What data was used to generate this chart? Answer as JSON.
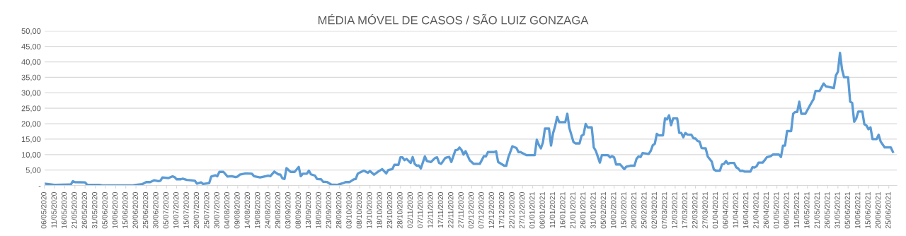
{
  "chart_data": {
    "type": "line",
    "title": "MÉDIA MÓVEL DE CASOS / SÃO LUIZ GONZAGA",
    "x": [
      "2020-05-06",
      "2020-05-11",
      "2020-05-18",
      "2020-05-19",
      "2020-05-20",
      "2020-05-21",
      "2020-05-26",
      "2020-05-27",
      "2020-06-02",
      "2020-06-04",
      "2020-06-18",
      "2020-06-20",
      "2020-06-23",
      "2020-06-25",
      "2020-06-27",
      "2020-06-29",
      "2020-07-01",
      "2020-07-02",
      "2020-07-03",
      "2020-07-06",
      "2020-07-08",
      "2020-07-09",
      "2020-07-10",
      "2020-07-12",
      "2020-07-13",
      "2020-07-15",
      "2020-07-17",
      "2020-07-19",
      "2020-07-20",
      "2020-07-22",
      "2020-07-23",
      "2020-07-26",
      "2020-07-27",
      "2020-07-29",
      "2020-07-30",
      "2020-07-31",
      "2020-08-02",
      "2020-08-04",
      "2020-08-06",
      "2020-08-08",
      "2020-08-09",
      "2020-08-10",
      "2020-08-13",
      "2020-08-16",
      "2020-08-17",
      "2020-08-20",
      "2020-08-22",
      "2020-08-24",
      "2020-08-25",
      "2020-08-27",
      "2020-08-29",
      "2020-08-30",
      "2020-08-31",
      "2020-09-01",
      "2020-09-02",
      "2020-09-04",
      "2020-09-06",
      "2020-09-08",
      "2020-09-09",
      "2020-09-10",
      "2020-09-12",
      "2020-09-13",
      "2020-09-14",
      "2020-09-16",
      "2020-09-17",
      "2020-09-19",
      "2020-09-20",
      "2020-09-22",
      "2020-09-24",
      "2020-09-27",
      "2020-09-29",
      "2020-09-30",
      "2020-10-01",
      "2020-10-03",
      "2020-10-05",
      "2020-10-06",
      "2020-10-07",
      "2020-10-08",
      "2020-10-10",
      "2020-10-12",
      "2020-10-13",
      "2020-10-15",
      "2020-10-17",
      "2020-10-19",
      "2020-10-21",
      "2020-10-22",
      "2020-10-24",
      "2020-10-25",
      "2020-10-27",
      "2020-10-28",
      "2020-10-29",
      "2020-10-30",
      "2020-10-31",
      "2020-11-02",
      "2020-11-03",
      "2020-11-04",
      "2020-11-05",
      "2020-11-06",
      "2020-11-07",
      "2020-11-09",
      "2020-11-10",
      "2020-11-12",
      "2020-11-14",
      "2020-11-15",
      "2020-11-16",
      "2020-11-17",
      "2020-11-19",
      "2020-11-20",
      "2020-11-21",
      "2020-11-22",
      "2020-11-24",
      "2020-11-25",
      "2020-11-26",
      "2020-11-27",
      "2020-11-28",
      "2020-11-29",
      "2020-12-01",
      "2020-12-03",
      "2020-12-06",
      "2020-12-08",
      "2020-12-09",
      "2020-12-10",
      "2020-12-13",
      "2020-12-14",
      "2020-12-15",
      "2020-12-18",
      "2020-12-19",
      "2020-12-20",
      "2020-12-22",
      "2020-12-24",
      "2020-12-25",
      "2020-12-26",
      "2020-12-29",
      "2021-01-02",
      "2021-01-03",
      "2021-01-04",
      "2021-01-05",
      "2021-01-06",
      "2021-01-07",
      "2021-01-09",
      "2021-01-10",
      "2021-01-11",
      "2021-01-12",
      "2021-01-13",
      "2021-01-14",
      "2021-01-17",
      "2021-01-18",
      "2021-01-19",
      "2021-01-21",
      "2021-01-22",
      "2021-01-24",
      "2021-01-25",
      "2021-01-26",
      "2021-01-27",
      "2021-01-28",
      "2021-01-30",
      "2021-01-31",
      "2021-02-01",
      "2021-02-03",
      "2021-02-04",
      "2021-02-07",
      "2021-02-08",
      "2021-02-09",
      "2021-02-10",
      "2021-02-11",
      "2021-02-13",
      "2021-02-15",
      "2021-02-16",
      "2021-02-18",
      "2021-02-20",
      "2021-02-21",
      "2021-02-22",
      "2021-02-23",
      "2021-02-24",
      "2021-02-27",
      "2021-02-28",
      "2021-03-01",
      "2021-03-02",
      "2021-03-03",
      "2021-03-04",
      "2021-03-06",
      "2021-03-07",
      "2021-03-08",
      "2021-03-09",
      "2021-03-10",
      "2021-03-11",
      "2021-03-13",
      "2021-03-14",
      "2021-03-15",
      "2021-03-16",
      "2021-03-17",
      "2021-03-18",
      "2021-03-20",
      "2021-03-21",
      "2021-03-22",
      "2021-03-23",
      "2021-03-24",
      "2021-03-25",
      "2021-03-27",
      "2021-03-28",
      "2021-03-30",
      "2021-03-31",
      "2021-04-01",
      "2021-04-03",
      "2021-04-04",
      "2021-04-05",
      "2021-04-06",
      "2021-04-07",
      "2021-04-08",
      "2021-04-10",
      "2021-04-11",
      "2021-04-12",
      "2021-04-13",
      "2021-04-14",
      "2021-04-15",
      "2021-04-18",
      "2021-04-19",
      "2021-04-20",
      "2021-04-21",
      "2021-04-22",
      "2021-04-24",
      "2021-04-25",
      "2021-04-26",
      "2021-04-28",
      "2021-04-29",
      "2021-05-02",
      "2021-05-03",
      "2021-05-04",
      "2021-05-05",
      "2021-05-06",
      "2021-05-08",
      "2021-05-09",
      "2021-05-10",
      "2021-05-11",
      "2021-05-12",
      "2021-05-13",
      "2021-05-15",
      "2021-05-16",
      "2021-05-18",
      "2021-05-19",
      "2021-05-20",
      "2021-05-22",
      "2021-05-24",
      "2021-05-25",
      "2021-05-27",
      "2021-05-29",
      "2021-05-30",
      "2021-05-31",
      "2021-06-01",
      "2021-06-02",
      "2021-06-03",
      "2021-06-05",
      "2021-06-06",
      "2021-06-07",
      "2021-06-08",
      "2021-06-09",
      "2021-06-10",
      "2021-06-12",
      "2021-06-13",
      "2021-06-14",
      "2021-06-15",
      "2021-06-16",
      "2021-06-17",
      "2021-06-19",
      "2021-06-20",
      "2021-06-21",
      "2021-06-23",
      "2021-06-26",
      "2021-06-27"
    ],
    "series": [
      {
        "color": "#5b9bd5",
        "values": [
          0.6,
          0.2,
          0.3,
          0.3,
          1.4,
          1.1,
          1.0,
          0.2,
          0.2,
          0,
          0,
          0.2,
          0.4,
          1.1,
          1.1,
          1.7,
          1.4,
          1.5,
          2.6,
          2.4,
          3.0,
          2.7,
          2.0,
          2.0,
          2.2,
          1.8,
          1.7,
          1.5,
          0.6,
          1.0,
          0.5,
          0.8,
          2.9,
          3.3,
          3.0,
          4.4,
          4.4,
          2.9,
          3.0,
          2.7,
          2.9,
          3.5,
          3.9,
          3.8,
          3.0,
          2.6,
          2.9,
          3.2,
          3.0,
          4.5,
          3.6,
          3.5,
          2.3,
          2.1,
          5.6,
          4.4,
          4.4,
          6.0,
          3.0,
          3.8,
          3.8,
          4.8,
          3.6,
          3.2,
          2.1,
          2.0,
          1.2,
          1.1,
          0.3,
          0.2,
          0.6,
          0.8,
          1.1,
          1.1,
          2.0,
          2.1,
          3.8,
          4.2,
          4.8,
          4.1,
          4.7,
          3.5,
          4.5,
          5.3,
          3.9,
          5.0,
          5.3,
          6.7,
          6.7,
          9.1,
          9.1,
          8.2,
          8.6,
          7.3,
          9.2,
          7.0,
          6.4,
          6.5,
          5.5,
          9.4,
          7.9,
          7.6,
          8.9,
          9.1,
          7.3,
          7.0,
          8.9,
          9.1,
          9.2,
          7.6,
          11.4,
          11.5,
          12.3,
          11.5,
          10.0,
          11.1,
          8.2,
          7.0,
          7.0,
          9.5,
          9.4,
          10.8,
          10.8,
          11.1,
          7.6,
          6.4,
          6.4,
          9.1,
          12.7,
          12.1,
          10.8,
          10.8,
          9.8,
          9.8,
          14.8,
          13.1,
          12.0,
          13.9,
          18.4,
          18.4,
          12.9,
          16.9,
          19.2,
          22.2,
          20.5,
          20.5,
          23.2,
          18.6,
          14.1,
          13.6,
          13.6,
          16.1,
          16.5,
          19.9,
          18.8,
          18.8,
          12.3,
          11.2,
          7.4,
          9.8,
          9.8,
          9.1,
          9.5,
          9.1,
          6.8,
          6.8,
          5.3,
          6.1,
          6.4,
          6.4,
          8.6,
          9.4,
          9.2,
          10.5,
          10.2,
          11.2,
          13.0,
          13.5,
          16.7,
          16.2,
          16.2,
          21.7,
          21.4,
          22.7,
          19.5,
          21.7,
          21.7,
          17.0,
          17.0,
          15.6,
          17.0,
          16.5,
          16.4,
          15.3,
          15.2,
          14.4,
          14.2,
          12.1,
          12.0,
          9.4,
          7.7,
          5.2,
          4.8,
          4.8,
          6.8,
          7.0,
          7.9,
          7.0,
          7.3,
          7.3,
          5.9,
          5.5,
          4.7,
          4.8,
          4.5,
          4.5,
          5.9,
          5.8,
          6.2,
          7.4,
          7.4,
          8.2,
          9.1,
          9.5,
          10.0,
          10.0,
          9.2,
          12.9,
          12.9,
          17.6,
          17.6,
          23.2,
          23.8,
          23.8,
          27.1,
          23.2,
          23.2,
          24.4,
          26.8,
          27.9,
          30.6,
          30.6,
          33.0,
          32.1,
          31.8,
          31.5,
          35.6,
          36.8,
          42.9,
          37.6,
          35.0,
          35.0,
          27.1,
          26.7,
          20.6,
          21.7,
          23.9,
          23.9,
          19.8,
          19.4,
          18.2,
          18.8,
          15.0,
          15.0,
          16.4,
          14.2,
          12.3,
          12.3,
          10.9
        ]
      }
    ],
    "xlim": [
      "2020-05-06",
      "2021-06-29"
    ],
    "xticks": [
      {
        "value": "2020-05-06",
        "label": "06/05/2020"
      },
      {
        "value": "2020-05-11",
        "label": "11/05/2020"
      },
      {
        "value": "2020-05-16",
        "label": "16/05/2020"
      },
      {
        "value": "2020-05-21",
        "label": "21/05/2020"
      },
      {
        "value": "2020-05-26",
        "label": "26/05/2020"
      },
      {
        "value": "2020-05-31",
        "label": "31/05/2020"
      },
      {
        "value": "2020-06-05",
        "label": "05/06/2020"
      },
      {
        "value": "2020-06-10",
        "label": "10/06/2020"
      },
      {
        "value": "2020-06-15",
        "label": "15/06/2020"
      },
      {
        "value": "2020-06-20",
        "label": "20/06/2020"
      },
      {
        "value": "2020-06-25",
        "label": "25/06/2020"
      },
      {
        "value": "2020-06-30",
        "label": "30/06/2020"
      },
      {
        "value": "2020-07-05",
        "label": "05/07/2020"
      },
      {
        "value": "2020-07-10",
        "label": "10/07/2020"
      },
      {
        "value": "2020-07-15",
        "label": "15/07/2020"
      },
      {
        "value": "2020-07-20",
        "label": "20/07/2020"
      },
      {
        "value": "2020-07-25",
        "label": "25/07/2020"
      },
      {
        "value": "2020-07-30",
        "label": "30/07/2020"
      },
      {
        "value": "2020-08-04",
        "label": "04/08/2020"
      },
      {
        "value": "2020-08-09",
        "label": "09/08/2020"
      },
      {
        "value": "2020-08-14",
        "label": "14/08/2020"
      },
      {
        "value": "2020-08-19",
        "label": "19/08/2020"
      },
      {
        "value": "2020-08-24",
        "label": "24/08/2020"
      },
      {
        "value": "2020-08-29",
        "label": "29/08/2020"
      },
      {
        "value": "2020-09-03",
        "label": "03/09/2020"
      },
      {
        "value": "2020-09-08",
        "label": "08/09/2020"
      },
      {
        "value": "2020-09-13",
        "label": "13/09/2020"
      },
      {
        "value": "2020-09-18",
        "label": "18/09/2020"
      },
      {
        "value": "2020-09-23",
        "label": "23/09/2020"
      },
      {
        "value": "2020-09-28",
        "label": "28/09/2020"
      },
      {
        "value": "2020-10-03",
        "label": "03/10/2020"
      },
      {
        "value": "2020-10-08",
        "label": "08/10/2020"
      },
      {
        "value": "2020-10-13",
        "label": "13/10/2020"
      },
      {
        "value": "2020-10-18",
        "label": "18/10/2020"
      },
      {
        "value": "2020-10-23",
        "label": "23/10/2020"
      },
      {
        "value": "2020-10-28",
        "label": "28/10/2020"
      },
      {
        "value": "2020-11-02",
        "label": "02/11/2020"
      },
      {
        "value": "2020-11-07",
        "label": "07/11/2020"
      },
      {
        "value": "2020-11-12",
        "label": "12/11/2020"
      },
      {
        "value": "2020-11-17",
        "label": "17/11/2020"
      },
      {
        "value": "2020-11-22",
        "label": "22/11/2020"
      },
      {
        "value": "2020-11-27",
        "label": "27/11/2020"
      },
      {
        "value": "2020-12-02",
        "label": "02/12/2020"
      },
      {
        "value": "2020-12-07",
        "label": "07/12/2020"
      },
      {
        "value": "2020-12-12",
        "label": "12/12/2020"
      },
      {
        "value": "2020-12-17",
        "label": "17/12/2020"
      },
      {
        "value": "2020-12-22",
        "label": "22/12/2020"
      },
      {
        "value": "2020-12-27",
        "label": "27/12/2020"
      },
      {
        "value": "2021-01-01",
        "label": "01/01/2021"
      },
      {
        "value": "2021-01-06",
        "label": "06/01/2021"
      },
      {
        "value": "2021-01-11",
        "label": "11/01/2021"
      },
      {
        "value": "2021-01-16",
        "label": "16/01/2021"
      },
      {
        "value": "2021-01-21",
        "label": "21/01/2021"
      },
      {
        "value": "2021-01-26",
        "label": "26/01/2021"
      },
      {
        "value": "2021-01-31",
        "label": "31/01/2021"
      },
      {
        "value": "2021-02-05",
        "label": "05/02/2021"
      },
      {
        "value": "2021-02-10",
        "label": "10/02/2021"
      },
      {
        "value": "2021-02-15",
        "label": "15/02/2021"
      },
      {
        "value": "2021-02-20",
        "label": "20/02/2021"
      },
      {
        "value": "2021-02-25",
        "label": "25/02/2021"
      },
      {
        "value": "2021-03-02",
        "label": "02/03/2021"
      },
      {
        "value": "2021-03-07",
        "label": "07/03/2021"
      },
      {
        "value": "2021-03-12",
        "label": "12/03/2021"
      },
      {
        "value": "2021-03-17",
        "label": "17/03/2021"
      },
      {
        "value": "2021-03-22",
        "label": "22/03/2021"
      },
      {
        "value": "2021-03-27",
        "label": "27/03/2021"
      },
      {
        "value": "2021-04-01",
        "label": "01/04/2021"
      },
      {
        "value": "2021-04-06",
        "label": "06/04/2021"
      },
      {
        "value": "2021-04-11",
        "label": "11/04/2021"
      },
      {
        "value": "2021-04-16",
        "label": "16/04/2021"
      },
      {
        "value": "2021-04-21",
        "label": "21/04/2021"
      },
      {
        "value": "2021-04-26",
        "label": "26/04/2021"
      },
      {
        "value": "2021-05-01",
        "label": "01/05/2021"
      },
      {
        "value": "2021-05-06",
        "label": "06/05/2021"
      },
      {
        "value": "2021-05-11",
        "label": "11/05/2021"
      },
      {
        "value": "2021-05-16",
        "label": "16/05/2021"
      },
      {
        "value": "2021-05-21",
        "label": "21/05/2021"
      },
      {
        "value": "2021-05-26",
        "label": "26/05/2021"
      },
      {
        "value": "2021-05-31",
        "label": "31/05/2021"
      },
      {
        "value": "2021-06-05",
        "label": "05/06/2021"
      },
      {
        "value": "2021-06-10",
        "label": "10/06/2021"
      },
      {
        "value": "2021-06-15",
        "label": "15/06/2021"
      },
      {
        "value": "2021-06-20",
        "label": "20/06/2021"
      },
      {
        "value": "2021-06-25",
        "label": "25/06/2021"
      }
    ],
    "ylim": [
      0,
      50
    ],
    "yticks": [
      {
        "value": 0,
        "label": "-"
      },
      {
        "value": 5,
        "label": "5,00"
      },
      {
        "value": 10,
        "label": "10,00"
      },
      {
        "value": 15,
        "label": "15,00"
      },
      {
        "value": 20,
        "label": "20,00"
      },
      {
        "value": 25,
        "label": "25,00"
      },
      {
        "value": 30,
        "label": "30,00"
      },
      {
        "value": 35,
        "label": "35,00"
      },
      {
        "value": 40,
        "label": "40,00"
      },
      {
        "value": 45,
        "label": "45,00"
      },
      {
        "value": 50,
        "label": "50,00"
      }
    ],
    "grid": "y",
    "marker": "none",
    "line_style": "solid"
  }
}
